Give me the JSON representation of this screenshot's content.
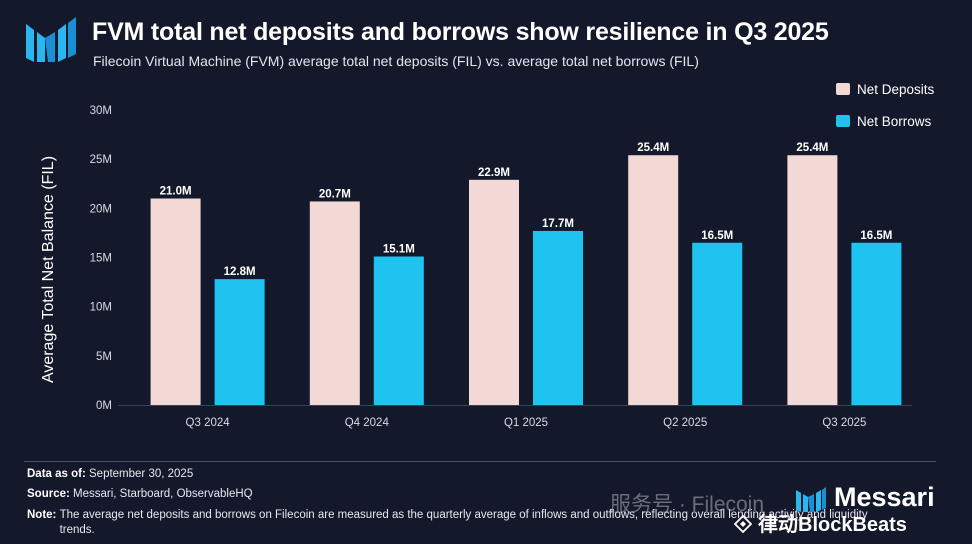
{
  "header": {
    "title": "FVM total net deposits and borrows show resilience in Q3 2025",
    "subtitle": "Filecoin Virtual Machine (FVM) average total net deposits (FIL) vs. average total net borrows (FIL)"
  },
  "chart_data": {
    "type": "bar",
    "categories": [
      "Q3 2024",
      "Q4 2024",
      "Q1 2025",
      "Q2 2025",
      "Q3 2025"
    ],
    "series": [
      {
        "name": "Net Deposits",
        "values": [
          21.0,
          20.7,
          22.9,
          25.4,
          25.4
        ],
        "labels": [
          "21.0M",
          "20.7M",
          "22.9M",
          "25.4M",
          "25.4M"
        ],
        "color": "#f2d9d5"
      },
      {
        "name": "Net Borrows",
        "values": [
          12.8,
          15.1,
          17.7,
          16.5,
          16.5
        ],
        "labels": [
          "12.8M",
          "15.1M",
          "17.7M",
          "16.5M",
          "16.5M"
        ],
        "color": "#1ec3ef"
      }
    ],
    "ylabel": "Average Total Net Balance (FIL)",
    "yticks": [
      0,
      5,
      10,
      15,
      20,
      25,
      30
    ],
    "ytick_labels": [
      "0M",
      "5M",
      "10M",
      "15M",
      "20M",
      "25M",
      "30M"
    ],
    "ylim": [
      0,
      30
    ],
    "unit": "M FIL",
    "grid": false,
    "legend_position": "top-right"
  },
  "footer": {
    "data_as_of_label": "Data as of:",
    "data_as_of": "September 30, 2025",
    "source_label": "Source:",
    "source": "Messari, Starboard, ObservableHQ",
    "note_label": "Note:",
    "note": "The average net deposits and borrows on Filecoin are measured as the quarterly average of inflows and outflows, reflecting overall lending activity and liquidity trends."
  },
  "branding": {
    "logo_icon": "messari-logo-icon",
    "brand_name": "Messari"
  },
  "watermarks": {
    "wechat": "服务号 · Filecoin",
    "blockbeats": "律动BlockBeats"
  },
  "colors": {
    "background": "#14182b",
    "deposits": "#f2d9d5",
    "borrows": "#1ec3ef",
    "logo_accent": "#2ab6f0"
  }
}
